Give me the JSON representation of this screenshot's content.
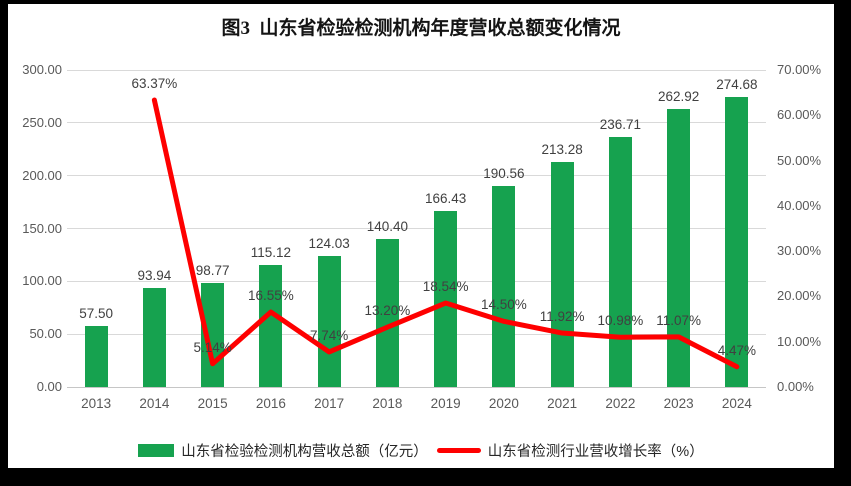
{
  "title": "图3  山东省检验检测机构年度营收总额变化情况",
  "colors": {
    "bar_green": "#16A24F",
    "line_red": "#FE0000",
    "gridline": "#D9D9D9",
    "axis_text": "#595959",
    "data_label_text": "#404040",
    "frame": "#000000",
    "background": "#FFFFFF"
  },
  "legend": {
    "position": "bottom",
    "items": [
      {
        "swatch": "bar",
        "label": "山东省检验检测机构营收总额（亿元）"
      },
      {
        "swatch": "line",
        "label": "山东省检测行业营收增长率（%）"
      }
    ]
  },
  "chart_data": {
    "type": "combo-bar-line",
    "title": "图3  山东省检验检测机构年度营收总额变化情况",
    "categories": [
      "2013",
      "2014",
      "2015",
      "2016",
      "2017",
      "2018",
      "2019",
      "2020",
      "2021",
      "2022",
      "2023",
      "2024"
    ],
    "series": [
      {
        "name": "山东省检验检测机构营收总额（亿元）",
        "type": "bar",
        "axis": "left",
        "color": "#16A24F",
        "values": [
          57.5,
          93.94,
          98.77,
          115.12,
          124.03,
          140.4,
          166.43,
          190.56,
          213.28,
          236.71,
          262.92,
          274.68
        ],
        "data_labels": [
          "57.50",
          "93.94",
          "98.77",
          "115.12",
          "124.03",
          "140.40",
          "166.43",
          "190.56",
          "213.28",
          "236.71",
          "262.92",
          "274.68"
        ]
      },
      {
        "name": "山东省检测行业营收增长率（%）",
        "type": "line",
        "axis": "right",
        "color": "#FE0000",
        "values": [
          null,
          63.37,
          5.14,
          16.55,
          7.74,
          13.2,
          18.54,
          14.5,
          11.92,
          10.98,
          11.07,
          4.47
        ],
        "data_labels": [
          null,
          "63.37%",
          "5.14%",
          "16.55%",
          "7.74%",
          "13.20%",
          "18.54%",
          "14.50%",
          "11.92%",
          "10.98%",
          "11.07%",
          "4.47%"
        ]
      }
    ],
    "left_axis": {
      "min": 0,
      "max": 300,
      "tick_step": 50,
      "tick_labels": [
        "0.00",
        "50.00",
        "100.00",
        "150.00",
        "200.00",
        "250.00",
        "300.00"
      ]
    },
    "right_axis": {
      "min": 0,
      "max": 70,
      "tick_step": 10,
      "tick_labels": [
        "0.00%",
        "10.00%",
        "20.00%",
        "30.00%",
        "40.00%",
        "50.00%",
        "60.00%",
        "70.00%"
      ]
    },
    "grid": "horizontal",
    "legend_position": "bottom"
  }
}
